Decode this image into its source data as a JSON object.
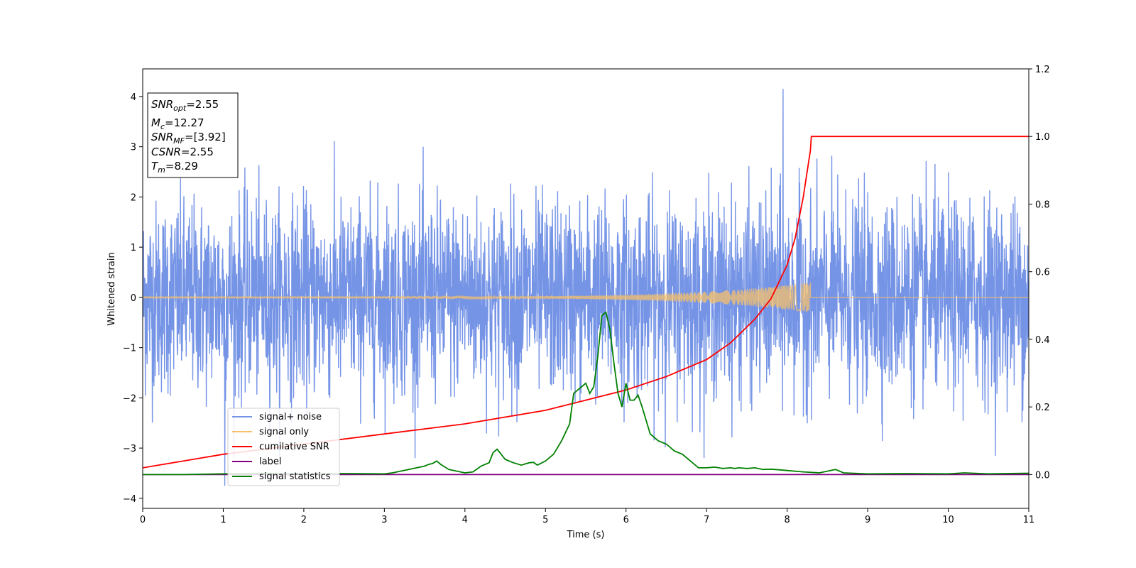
{
  "chart_data": {
    "type": "line",
    "title": "",
    "xlabel": "Time (s)",
    "ylabel": "Whitened strain",
    "xlim": [
      0,
      11
    ],
    "ylim": [
      -4.2,
      4.55
    ],
    "y2lim": [
      -0.1,
      1.2
    ],
    "xticks": [
      "0",
      "1",
      "2",
      "3",
      "4",
      "5",
      "6",
      "7",
      "8",
      "9",
      "10",
      "11"
    ],
    "yticks": [
      "−4",
      "−3",
      "−2",
      "−1",
      "0",
      "1",
      "2",
      "3",
      "4"
    ],
    "y2ticks": [
      "0.0",
      "0.2",
      "0.4",
      "0.6",
      "0.8",
      "1.0",
      "1.2"
    ],
    "grid": false,
    "legend_position": "lower-left",
    "annotation": {
      "snr_opt": {
        "symbol": "SNR",
        "sub": "opt",
        "value": "=2.55"
      },
      "mc": {
        "symbol": "M",
        "sub": "c",
        "value": "=12.27"
      },
      "snr_mf": {
        "symbol": "SNR",
        "sub": "MF",
        "value": "=[3.92]"
      },
      "csnr": {
        "symbol": "CSNR",
        "sub": "",
        "value": "=2.55"
      },
      "tm": {
        "symbol": "T",
        "sub": "m",
        "value": "=8.29"
      }
    },
    "series": [
      {
        "name": "signal+ noise",
        "axis": "left",
        "color": "#7594e6",
        "noise_envelope": {
          "typical_amplitude": 1.0,
          "peak_amplitude": 3.2,
          "max_spike": {
            "x": 7.95,
            "y": 4.15
          },
          "min_spike": {
            "x": 1.02,
            "y": -3.75
          }
        }
      },
      {
        "name": "signal only",
        "axis": "left",
        "color": "#f5c06a",
        "chirp": {
          "start": 0,
          "end": 8.29,
          "start_amplitude": 0.01,
          "end_amplitude": 0.3
        }
      },
      {
        "name": "cumilative SNR",
        "axis": "right",
        "color": "#ff0000",
        "x": [
          0,
          1,
          2,
          3,
          4,
          5,
          5.5,
          6,
          6.5,
          7,
          7.3,
          7.6,
          7.8,
          8.0,
          8.1,
          8.2,
          8.29,
          8.3,
          11
        ],
        "y": [
          0.02,
          0.06,
          0.09,
          0.12,
          0.15,
          0.19,
          0.22,
          0.25,
          0.29,
          0.34,
          0.39,
          0.46,
          0.52,
          0.62,
          0.7,
          0.82,
          0.96,
          1.0,
          1.0
        ]
      },
      {
        "name": "label",
        "axis": "right",
        "color": "#800080",
        "x": [
          0,
          11
        ],
        "y": [
          0.0,
          0.0
        ]
      },
      {
        "name": "signal statistics",
        "axis": "right",
        "color": "#008000",
        "x": [
          0,
          0.5,
          1,
          1.5,
          2,
          2.5,
          3,
          3.1,
          3.2,
          3.3,
          3.4,
          3.5,
          3.55,
          3.6,
          3.65,
          3.7,
          3.8,
          3.9,
          4.0,
          4.1,
          4.2,
          4.3,
          4.35,
          4.4,
          4.45,
          4.5,
          4.6,
          4.7,
          4.8,
          4.85,
          4.9,
          5.0,
          5.1,
          5.2,
          5.3,
          5.35,
          5.4,
          5.5,
          5.55,
          5.6,
          5.65,
          5.7,
          5.75,
          5.8,
          5.85,
          5.9,
          5.95,
          6.0,
          6.05,
          6.1,
          6.15,
          6.2,
          6.25,
          6.3,
          6.4,
          6.5,
          6.6,
          6.7,
          6.8,
          6.9,
          7.0,
          7.1,
          7.2,
          7.3,
          7.35,
          7.4,
          7.5,
          7.6,
          7.7,
          7.8,
          7.9,
          8.0,
          8.2,
          8.4,
          8.5,
          8.6,
          8.7,
          9.0,
          9.5,
          10.0,
          10.2,
          10.5,
          11.0
        ],
        "y": [
          0.0,
          0.0,
          0.002,
          0.004,
          0.002,
          0.003,
          0.002,
          0.005,
          0.01,
          0.015,
          0.02,
          0.025,
          0.03,
          0.033,
          0.04,
          0.03,
          0.015,
          0.01,
          0.005,
          0.008,
          0.025,
          0.035,
          0.065,
          0.075,
          0.06,
          0.045,
          0.035,
          0.028,
          0.035,
          0.036,
          0.028,
          0.04,
          0.06,
          0.1,
          0.15,
          0.24,
          0.25,
          0.27,
          0.24,
          0.26,
          0.35,
          0.47,
          0.48,
          0.43,
          0.33,
          0.24,
          0.2,
          0.27,
          0.22,
          0.22,
          0.235,
          0.2,
          0.16,
          0.12,
          0.1,
          0.09,
          0.07,
          0.06,
          0.04,
          0.02,
          0.02,
          0.022,
          0.018,
          0.02,
          0.018,
          0.02,
          0.018,
          0.02,
          0.015,
          0.016,
          0.014,
          0.012,
          0.008,
          0.005,
          0.01,
          0.015,
          0.005,
          0.002,
          0.003,
          0.002,
          0.005,
          0.002,
          0.004
        ]
      }
    ]
  }
}
